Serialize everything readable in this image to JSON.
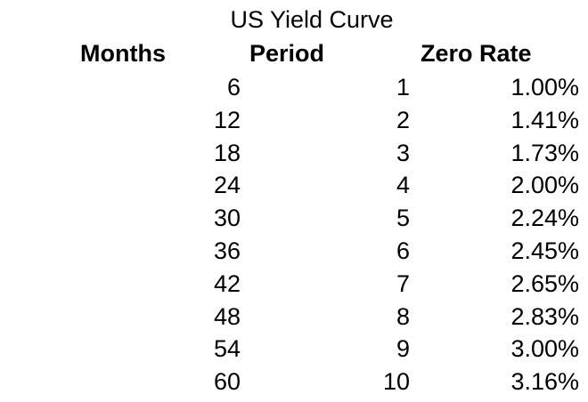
{
  "title": "US Yield Curve",
  "headers": {
    "months": "Months",
    "period": "Period",
    "zero_rate": "Zero Rate"
  },
  "rows": [
    {
      "months": "6",
      "period": "1",
      "zero_rate": "1.00%"
    },
    {
      "months": "12",
      "period": "2",
      "zero_rate": "1.41%"
    },
    {
      "months": "18",
      "period": "3",
      "zero_rate": "1.73%"
    },
    {
      "months": "24",
      "period": "4",
      "zero_rate": "2.00%"
    },
    {
      "months": "30",
      "period": "5",
      "zero_rate": "2.24%"
    },
    {
      "months": "36",
      "period": "6",
      "zero_rate": "2.45%"
    },
    {
      "months": "42",
      "period": "7",
      "zero_rate": "2.65%"
    },
    {
      "months": "48",
      "period": "8",
      "zero_rate": "2.83%"
    },
    {
      "months": "54",
      "period": "9",
      "zero_rate": "3.00%"
    },
    {
      "months": "60",
      "period": "10",
      "zero_rate": "3.16%"
    }
  ]
}
